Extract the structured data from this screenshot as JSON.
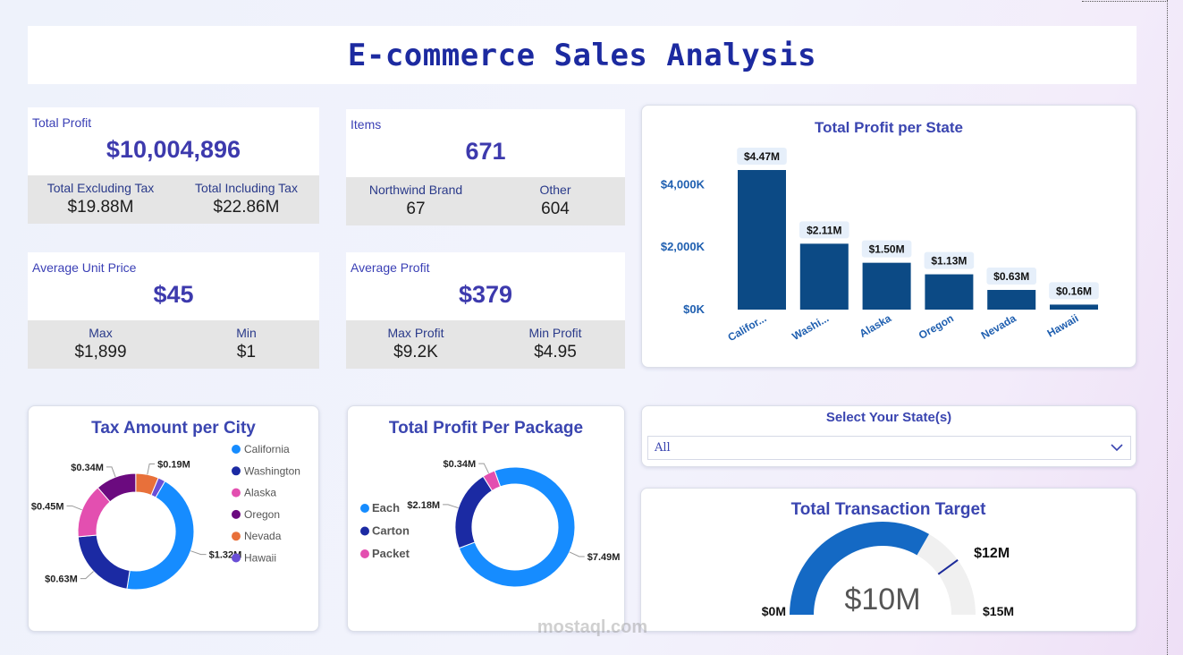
{
  "page_title": "E-commerce Sales Analysis",
  "kpis": {
    "total_profit": {
      "label": "Total Profit",
      "value": "$10,004,896",
      "sub": [
        {
          "label": "Total Excluding Tax",
          "value": "$19.88M"
        },
        {
          "label": "Total Including Tax",
          "value": "$22.86M"
        }
      ]
    },
    "items": {
      "label": "Items",
      "value": "671",
      "sub": [
        {
          "label": "Northwind Brand",
          "value": "67"
        },
        {
          "label": "Other",
          "value": "604"
        }
      ]
    },
    "avg_unit_price": {
      "label": "Average Unit Price",
      "value": "$45",
      "sub": [
        {
          "label": "Max",
          "value": "$1,899"
        },
        {
          "label": "Min",
          "value": "$1"
        }
      ]
    },
    "avg_profit": {
      "label": "Average Profit",
      "value": "$379",
      "sub": [
        {
          "label": "Max Profit",
          "value": "$9.2K"
        },
        {
          "label": "Min Profit",
          "value": "$4.95"
        }
      ]
    }
  },
  "slicer": {
    "title": "Select Your State(s)",
    "value": "All",
    "icon": "chevron-down-icon"
  },
  "watermark": {
    "text": "mostaql.com"
  },
  "colors": {
    "bar": "#0c4a85",
    "title": "#3a45b0",
    "gauge_fill": "#1469c4",
    "gauge_track": "#f0f0f0",
    "california": "#168cff",
    "washington": "#1b2aa3",
    "alaska": "#e34fb0",
    "oregon": "#6b0a7f",
    "nevada": "#e8703a",
    "hawaii": "#6a4fd6"
  },
  "chart_data": [
    {
      "type": "bar",
      "title": "Total Profit per State",
      "categories": [
        "Califor...",
        "Washi...",
        "Alaska",
        "Oregon",
        "Nevada",
        "Hawaii"
      ],
      "values": [
        4.47,
        2.11,
        1.5,
        1.13,
        0.63,
        0.16
      ],
      "data_labels": [
        "$4.47M",
        "$2.11M",
        "$1.50M",
        "$1.13M",
        "$0.63M",
        "$0.16M"
      ],
      "ylim": [
        0,
        4.47
      ],
      "yticks": [
        0,
        2,
        4
      ],
      "ytick_labels": [
        "$0K",
        "$2,000K",
        "$4,000K"
      ],
      "grid": false
    },
    {
      "type": "pie",
      "variant": "donut",
      "title": "Tax Amount per City",
      "legend_position": "right",
      "slices": [
        {
          "name": "California",
          "value": 1.32,
          "label": "$1.32M"
        },
        {
          "name": "Washington",
          "value": 0.63,
          "label": "$0.63M"
        },
        {
          "name": "Alaska",
          "value": 0.45,
          "label": "$0.45M"
        },
        {
          "name": "Oregon",
          "value": 0.34,
          "label": "$0.34M"
        },
        {
          "name": "Nevada",
          "value": 0.19,
          "label": "$0.19M"
        },
        {
          "name": "Hawaii",
          "value": 0.06,
          "label": ""
        }
      ]
    },
    {
      "type": "pie",
      "variant": "donut",
      "title": "Total Profit Per Package",
      "legend_position": "left",
      "slices": [
        {
          "name": "Each",
          "value": 7.49,
          "label": "$7.49M"
        },
        {
          "name": "Carton",
          "value": 2.18,
          "label": "$2.18M"
        },
        {
          "name": "Packet",
          "value": 0.34,
          "label": "$0.34M"
        }
      ]
    },
    {
      "type": "gauge",
      "title": "Total Transaction Target",
      "value": 10,
      "value_label": "$10M",
      "min": 0,
      "min_label": "$0M",
      "max": 15,
      "max_label": "$15M",
      "target": 12,
      "target_label": "$12M"
    }
  ]
}
